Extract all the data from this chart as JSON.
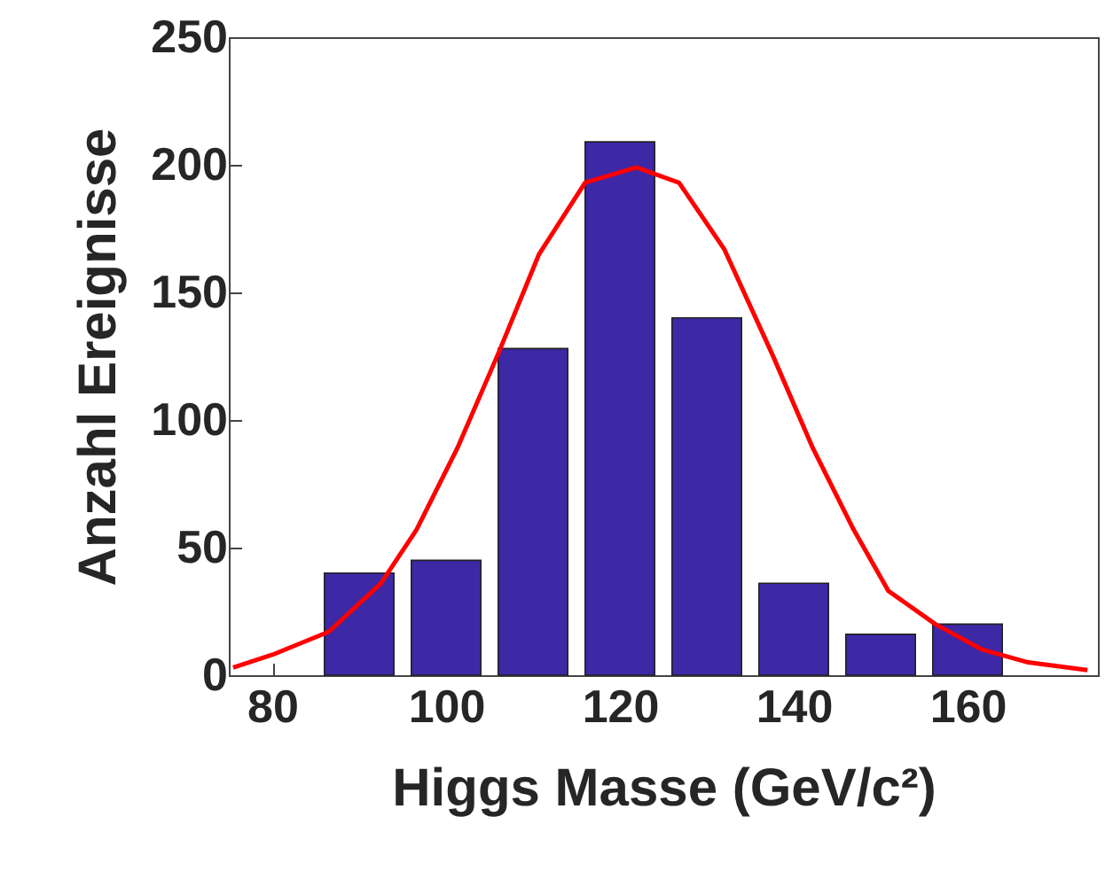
{
  "chart_data": {
    "type": "bar",
    "xlabel": "Higgs Masse (GeV/c²)",
    "ylabel": "Anzahl Ereignisse",
    "x": [
      90,
      100,
      110,
      120,
      130,
      140,
      150,
      160
    ],
    "series": [
      {
        "color": "#3d28a5",
        "values": [
          40,
          45,
          128,
          209,
          140,
          36,
          16,
          20
        ]
      },
      {
        "type": "line",
        "color": "#ff0000",
        "x": [
          75.5,
          80,
          86.5,
          92.5,
          96.6,
          101.3,
          106,
          110.7,
          116,
          121.9,
          126.8,
          132,
          137.5,
          142.2,
          146.9,
          150.9,
          156.3,
          161.7,
          167,
          173.8
        ],
        "values": [
          3,
          8,
          17,
          36,
          57,
          89,
          126,
          165,
          193,
          199,
          193,
          167,
          126,
          89,
          57,
          33,
          20,
          10,
          5,
          2
        ]
      }
    ],
    "xlim": [
      75,
      175
    ],
    "xticks": [
      80,
      100,
      120,
      140,
      160
    ],
    "ylim": [
      0,
      250
    ],
    "yticks": [
      0,
      50,
      100,
      150,
      200,
      250
    ],
    "grid": false
  }
}
